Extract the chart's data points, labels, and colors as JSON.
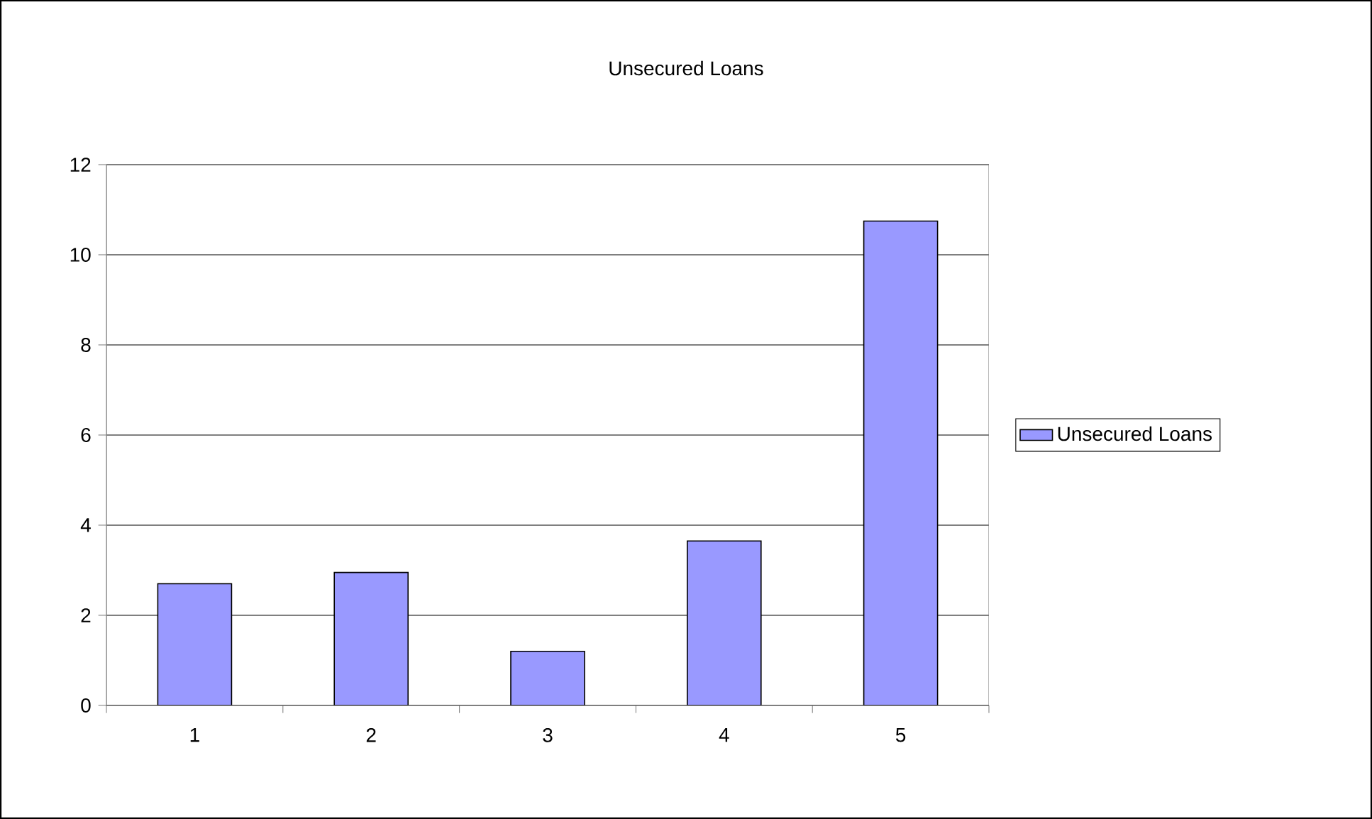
{
  "chart_data": {
    "type": "bar",
    "title": "Unsecured Loans",
    "categories": [
      "1",
      "2",
      "3",
      "4",
      "5"
    ],
    "series": [
      {
        "name": "Unsecured Loans",
        "color": "#9999ff",
        "values": [
          2.7,
          2.95,
          1.2,
          3.65,
          10.75
        ]
      }
    ],
    "ylim": [
      0,
      12
    ],
    "yticks": [
      0,
      2,
      4,
      6,
      8,
      10,
      12
    ],
    "grid": "y",
    "legend": "right"
  }
}
